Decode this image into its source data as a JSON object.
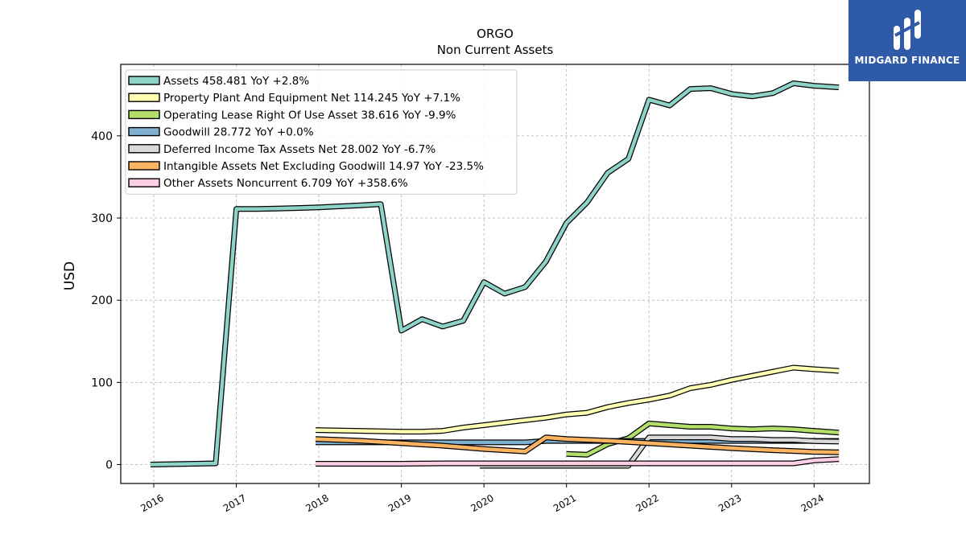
{
  "brand": {
    "name": "MIDGARD FINANCE",
    "bg_color": "#2f5aa8"
  },
  "chart_data": {
    "type": "line",
    "title": "ORGO",
    "subtitle": "Non Current  Assets",
    "ylabel": "USD",
    "xlabel": "",
    "xlim": [
      2015.6,
      2024.67
    ],
    "ylim": [
      -23,
      487
    ],
    "x_ticks": [
      "2016",
      "2017",
      "2018",
      "2019",
      "2020",
      "2021",
      "2022",
      "2023",
      "2024"
    ],
    "y_ticks": [
      "0",
      "100",
      "200",
      "300",
      "400"
    ],
    "grid": true,
    "legend_position": "top-left",
    "series": [
      {
        "name": "Assets  458.481 YoY +2.8%",
        "color": "#8dd3c7",
        "points": [
          [
            2015.96,
            0
          ],
          [
            2016.75,
            1.5
          ],
          [
            2017.0,
            311
          ],
          [
            2017.25,
            311
          ],
          [
            2017.5,
            311.5
          ],
          [
            2018.0,
            313
          ],
          [
            2018.5,
            315.5
          ],
          [
            2018.75,
            317
          ],
          [
            2019.0,
            163
          ],
          [
            2019.25,
            177
          ],
          [
            2019.5,
            168
          ],
          [
            2019.75,
            175
          ],
          [
            2020.0,
            222
          ],
          [
            2020.25,
            208
          ],
          [
            2020.5,
            216
          ],
          [
            2020.75,
            247
          ],
          [
            2021.0,
            294
          ],
          [
            2021.25,
            319
          ],
          [
            2021.5,
            355
          ],
          [
            2021.75,
            372
          ],
          [
            2022.0,
            444
          ],
          [
            2022.25,
            437
          ],
          [
            2022.5,
            457
          ],
          [
            2022.75,
            458
          ],
          [
            2023.0,
            451
          ],
          [
            2023.25,
            448
          ],
          [
            2023.5,
            452
          ],
          [
            2023.75,
            464
          ],
          [
            2024.0,
            461
          ],
          [
            2024.3,
            459
          ]
        ]
      },
      {
        "name": "Property Plant And Equipment Net  114.245 YoY +7.1%",
        "color": "#ffffb3",
        "points": [
          [
            2017.96,
            42
          ],
          [
            2018.5,
            41
          ],
          [
            2019.0,
            40
          ],
          [
            2019.25,
            40
          ],
          [
            2019.5,
            41
          ],
          [
            2019.75,
            45
          ],
          [
            2020.0,
            48
          ],
          [
            2020.25,
            51
          ],
          [
            2020.5,
            54
          ],
          [
            2020.75,
            57
          ],
          [
            2021.0,
            61
          ],
          [
            2021.25,
            63
          ],
          [
            2021.5,
            70
          ],
          [
            2021.75,
            75
          ],
          [
            2022.0,
            79
          ],
          [
            2022.25,
            84
          ],
          [
            2022.5,
            93
          ],
          [
            2022.75,
            97
          ],
          [
            2023.0,
            103
          ],
          [
            2023.25,
            108
          ],
          [
            2023.5,
            113
          ],
          [
            2023.75,
            118
          ],
          [
            2024.0,
            116
          ],
          [
            2024.3,
            114
          ]
        ]
      },
      {
        "name": "Operating Lease Right Of Use Asset  38.616 YoY -9.9%",
        "color": "#b3de69",
        "points": [
          [
            2021.0,
            13
          ],
          [
            2021.25,
            12
          ],
          [
            2021.5,
            25
          ],
          [
            2021.75,
            32
          ],
          [
            2022.0,
            50
          ],
          [
            2022.25,
            48
          ],
          [
            2022.5,
            46
          ],
          [
            2022.75,
            46
          ],
          [
            2023.0,
            44
          ],
          [
            2023.25,
            43
          ],
          [
            2023.5,
            44
          ],
          [
            2023.75,
            43
          ],
          [
            2024.0,
            41
          ],
          [
            2024.3,
            39
          ]
        ]
      },
      {
        "name": "Goodwill  28.772 YoY +0.0%",
        "color": "#80b1d3",
        "points": [
          [
            2017.96,
            27
          ],
          [
            2018.5,
            27
          ],
          [
            2019.0,
            27
          ],
          [
            2019.5,
            27
          ],
          [
            2020.0,
            27
          ],
          [
            2020.5,
            27
          ],
          [
            2020.75,
            28.8
          ],
          [
            2021.0,
            28.8
          ],
          [
            2021.5,
            28.8
          ],
          [
            2022.0,
            28.8
          ],
          [
            2022.5,
            28.8
          ],
          [
            2023.0,
            28.8
          ],
          [
            2023.5,
            28.8
          ],
          [
            2024.0,
            28.8
          ],
          [
            2024.3,
            28.8
          ]
        ]
      },
      {
        "name": "Deferred Income Tax Assets Net  28.002 YoY -6.7%",
        "color": "#d9d9d9",
        "points": [
          [
            2019.95,
            -1.5
          ],
          [
            2020.5,
            -1.5
          ],
          [
            2021.0,
            -1.5
          ],
          [
            2021.5,
            -1.5
          ],
          [
            2021.75,
            -1.5
          ],
          [
            2022.0,
            33
          ],
          [
            2022.25,
            33
          ],
          [
            2022.5,
            33
          ],
          [
            2022.75,
            33
          ],
          [
            2023.0,
            31
          ],
          [
            2023.25,
            31
          ],
          [
            2023.5,
            30
          ],
          [
            2023.75,
            30
          ],
          [
            2024.0,
            28.5
          ],
          [
            2024.3,
            28
          ]
        ]
      },
      {
        "name": "Intangible Assets Net Excluding Goodwill  14.97 YoY -23.5%",
        "color": "#fdb462",
        "points": [
          [
            2017.96,
            31
          ],
          [
            2018.5,
            29
          ],
          [
            2019.0,
            26
          ],
          [
            2019.5,
            23
          ],
          [
            2020.0,
            19
          ],
          [
            2020.5,
            16
          ],
          [
            2020.75,
            33
          ],
          [
            2021.0,
            31
          ],
          [
            2021.5,
            29
          ],
          [
            2022.0,
            26
          ],
          [
            2022.5,
            23
          ],
          [
            2023.0,
            20
          ],
          [
            2023.5,
            17.5
          ],
          [
            2023.75,
            16.5
          ],
          [
            2024.0,
            15.5
          ],
          [
            2024.3,
            15
          ]
        ]
      },
      {
        "name": "Other Assets Noncurrent  6.709 YoY +358.6%",
        "color": "#fccde5",
        "points": [
          [
            2017.96,
            1
          ],
          [
            2018.5,
            1
          ],
          [
            2019.0,
            1
          ],
          [
            2019.5,
            1.5
          ],
          [
            2020.0,
            1.5
          ],
          [
            2020.5,
            1.5
          ],
          [
            2021.0,
            1.5
          ],
          [
            2021.5,
            1.5
          ],
          [
            2022.0,
            1.5
          ],
          [
            2022.5,
            1.5
          ],
          [
            2023.0,
            1.5
          ],
          [
            2023.5,
            1.5
          ],
          [
            2023.75,
            1.5
          ],
          [
            2024.0,
            5
          ],
          [
            2024.3,
            6.7
          ]
        ]
      }
    ]
  }
}
